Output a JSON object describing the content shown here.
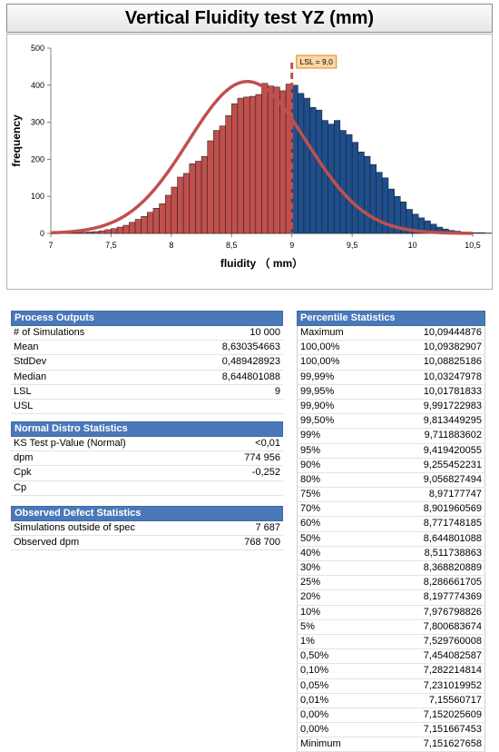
{
  "title": "Vertical Fluidity test YZ (mm)",
  "chart_data": {
    "type": "bar",
    "xlabel": "fluidity （ mm）",
    "ylabel": "frequency",
    "xlim": [
      7,
      10.5
    ],
    "ylim": [
      0,
      500
    ],
    "x_ticks": [
      "7",
      "7,5",
      "8",
      "8,5",
      "9",
      "9,5",
      "10",
      "10,5"
    ],
    "y_ticks": [
      "0",
      "100",
      "200",
      "300",
      "400",
      "500"
    ],
    "bin_start": 7.0,
    "bin_width": 0.05,
    "values": [
      0,
      0,
      1,
      1,
      2,
      3,
      4,
      5,
      7,
      10,
      13,
      17,
      22,
      30,
      38,
      46,
      57,
      68,
      80,
      103,
      125,
      152,
      162,
      188,
      195,
      208,
      250,
      278,
      290,
      318,
      350,
      365,
      368,
      370,
      375,
      405,
      398,
      395,
      385,
      403,
      400,
      378,
      365,
      340,
      333,
      305,
      295,
      305,
      278,
      267,
      246,
      220,
      208,
      186,
      165,
      150,
      120,
      100,
      85,
      65,
      52,
      42,
      34,
      25,
      17,
      12,
      8,
      6,
      4,
      3,
      2,
      2,
      1,
      1,
      0
    ],
    "split_value": 9.0,
    "colors": {
      "below": "#c0504d",
      "above": "#1f4e8c",
      "curve": "#c0504d",
      "lsl_line": "#c0504d"
    },
    "normal_fit": {
      "mean": 8.630354663,
      "stdev": 0.489428923,
      "peak": 410
    },
    "lsl": {
      "value": 9.0,
      "label": "LSL = 9,0"
    }
  },
  "process_outputs": {
    "header": "Process Outputs",
    "rows": [
      {
        "label": "# of Simulations",
        "value": "10 000"
      },
      {
        "label": "Mean",
        "value": "8,630354663"
      },
      {
        "label": "StdDev",
        "value": "0,489428923"
      },
      {
        "label": "Median",
        "value": "8,644801088"
      },
      {
        "label": "LSL",
        "value": "9"
      },
      {
        "label": "USL",
        "value": ""
      }
    ]
  },
  "normal_distro": {
    "header": "Normal Distro Statistics",
    "rows": [
      {
        "label": "KS Test p-Value (Normal)",
        "value": "<0,01"
      },
      {
        "label": "dpm",
        "value": "774 956"
      },
      {
        "label": "Cpk",
        "value": "-0,252"
      },
      {
        "label": "Cp",
        "value": ""
      }
    ]
  },
  "observed_defect": {
    "header": "Observed Defect Statistics",
    "rows": [
      {
        "label": "Simulations outside of spec",
        "value": "7 687"
      },
      {
        "label": "Observed dpm",
        "value": "768 700"
      }
    ]
  },
  "percentile": {
    "header": "Percentile Statistics",
    "rows": [
      {
        "label": "Maximum",
        "value": "10,09444876"
      },
      {
        "label": "100,00%",
        "value": "10,09382907"
      },
      {
        "label": "100,00%",
        "value": "10,08825186"
      },
      {
        "label": "99,99%",
        "value": "10,03247978"
      },
      {
        "label": "99,95%",
        "value": "10,01781833"
      },
      {
        "label": "99,90%",
        "value": "9,991722983"
      },
      {
        "label": "99,50%",
        "value": "9,813449295"
      },
      {
        "label": "99%",
        "value": "9,711883602"
      },
      {
        "label": "95%",
        "value": "9,419420055"
      },
      {
        "label": "90%",
        "value": "9,255452231"
      },
      {
        "label": "80%",
        "value": "9,056827494"
      },
      {
        "label": "75%",
        "value": "8,97177747"
      },
      {
        "label": "70%",
        "value": "8,901960569"
      },
      {
        "label": "60%",
        "value": "8,771748185"
      },
      {
        "label": "50%",
        "value": "8,644801088"
      },
      {
        "label": "40%",
        "value": "8,511738863"
      },
      {
        "label": "30%",
        "value": "8,368820889"
      },
      {
        "label": "25%",
        "value": "8,286661705"
      },
      {
        "label": "20%",
        "value": "8,197774369"
      },
      {
        "label": "10%",
        "value": "7,976798826"
      },
      {
        "label": "5%",
        "value": "7,800683674"
      },
      {
        "label": "1%",
        "value": "7,529760008"
      },
      {
        "label": "0,50%",
        "value": "7,454082587"
      },
      {
        "label": "0,10%",
        "value": "7,282214814"
      },
      {
        "label": "0,05%",
        "value": "7,231019952"
      },
      {
        "label": "0,01%",
        "value": "7,15560717"
      },
      {
        "label": "0,00%",
        "value": "7,152025609"
      },
      {
        "label": "0,00%",
        "value": "7,151667453"
      },
      {
        "label": "Minimum",
        "value": "7,151627658"
      }
    ]
  }
}
